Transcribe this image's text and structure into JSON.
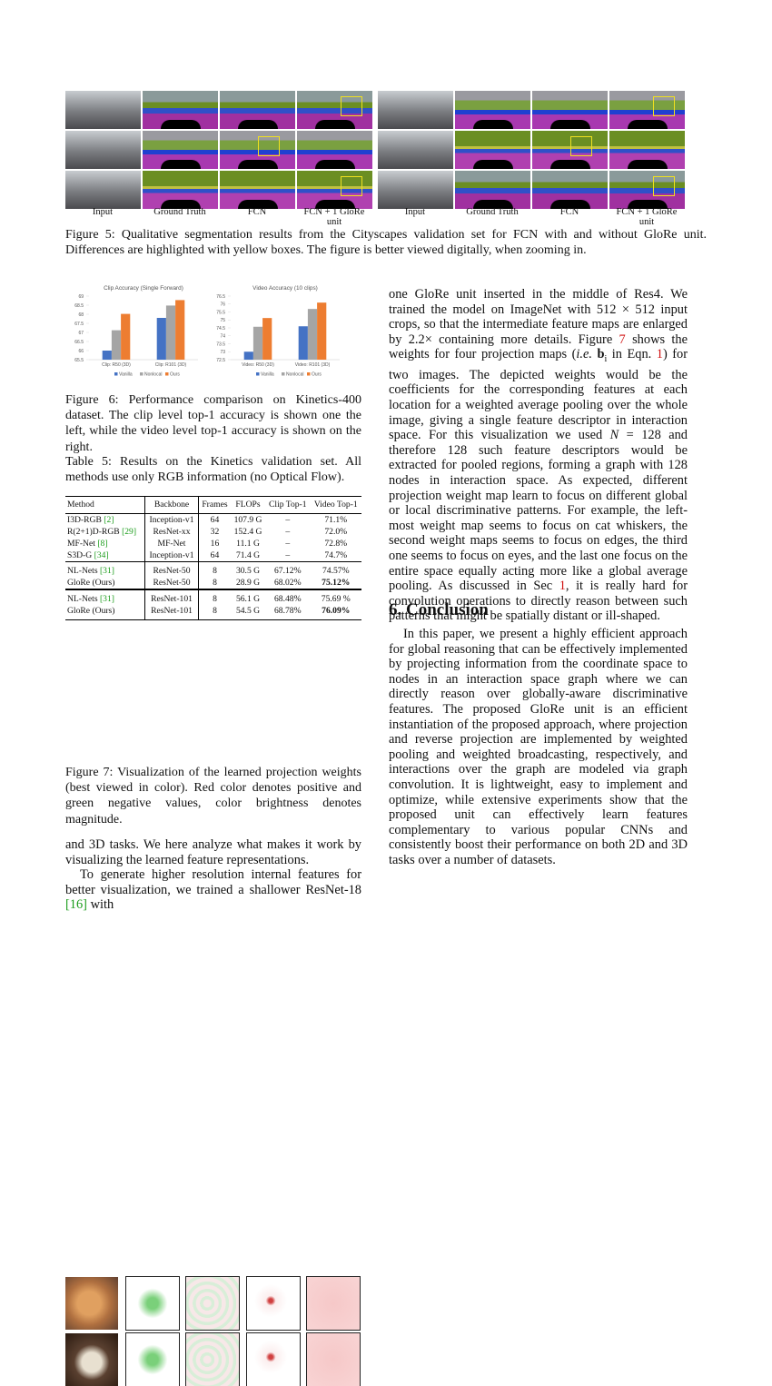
{
  "figure5": {
    "column_labels": [
      "Input",
      "Ground Truth",
      "FCN",
      "FCN + 1 GloRe unit",
      "Input",
      "Ground Truth",
      "FCN",
      "FCN + 1 GloRe unit"
    ],
    "caption": "Figure 5: Qualitative segmentation results from the Cityscapes validation set for FCN with and without GloRe unit. Differences are highlighted with yellow boxes. The figure is better viewed digitally, when zooming in."
  },
  "chart_data": [
    {
      "type": "bar",
      "title": "Clip Accuracy (Single Forward)",
      "categories": [
        "Clip: R50 (3D)",
        "Clip: R101 (3D)"
      ],
      "series": [
        {
          "name": "Vanilla",
          "color": "#4472c4",
          "values": [
            66.0,
            67.8
          ]
        },
        {
          "name": "Nonlocal",
          "color": "#a5a5a5",
          "values": [
            67.12,
            68.48
          ]
        },
        {
          "name": "Ours",
          "color": "#ed7d31",
          "values": [
            68.02,
            68.78
          ]
        }
      ],
      "ylim": [
        65.5,
        69
      ],
      "yticks": [
        65.5,
        66,
        66.5,
        67,
        67.5,
        68,
        68.5,
        69
      ],
      "legend": "bottom"
    },
    {
      "type": "bar",
      "title": "Video Accuracy (10 clips)",
      "categories": [
        "Video: R50 (3D)",
        "Video: R101 (3D)"
      ],
      "series": [
        {
          "name": "Vanilla",
          "color": "#4472c4",
          "values": [
            73.0,
            74.6
          ]
        },
        {
          "name": "Nonlocal",
          "color": "#a5a5a5",
          "values": [
            74.57,
            75.69
          ]
        },
        {
          "name": "Ours",
          "color": "#ed7d31",
          "values": [
            75.12,
            76.09
          ]
        }
      ],
      "ylim": [
        72.5,
        76.5
      ],
      "yticks": [
        72.5,
        73,
        73.5,
        74,
        74.5,
        75,
        75.5,
        76,
        76.5
      ],
      "legend": "bottom"
    }
  ],
  "figure6": {
    "caption": "Figure 6: Performance comparison on Kinetics-400 dataset. The clip level top-1 accuracy is shown one the left, while the video level top-1 accuracy is shown on the right."
  },
  "table5": {
    "caption": "Table 5: Results on the Kinetics validation set. All methods use only RGB information (no Optical Flow).",
    "header": [
      "Method",
      "Backbone",
      "Frames",
      "FLOPs",
      "Clip Top-1",
      "Video Top-1"
    ],
    "groups": [
      [
        {
          "method": "I3D-RGB",
          "cite": "[2]",
          "cells": [
            "Inception-v1",
            "64",
            "107.9 G",
            "–",
            "71.1%"
          ]
        },
        {
          "method": "R(2+1)D-RGB",
          "cite": "[29]",
          "cells": [
            "ResNet-xx",
            "32",
            "152.4 G",
            "–",
            "72.0%"
          ]
        },
        {
          "method": "MF-Net",
          "cite": "[8]",
          "cells": [
            "MF-Net",
            "16",
            "11.1 G",
            "–",
            "72.8%"
          ]
        },
        {
          "method": "S3D-G",
          "cite": "[34]",
          "cells": [
            "Inception-v1",
            "64",
            "71.4 G",
            "–",
            "74.7%"
          ]
        }
      ],
      [
        {
          "method": "NL-Nets",
          "cite": "[31]",
          "cells": [
            "ResNet-50",
            "8",
            "30.5 G",
            "67.12%",
            "74.57%"
          ]
        },
        {
          "method": "GloRe (Ours)",
          "cells": [
            "ResNet-50",
            "8",
            "28.9 G",
            "68.02%",
            "75.12%"
          ]
        }
      ],
      [
        {
          "method": "NL-Nets",
          "cite": "[31]",
          "cells": [
            "ResNet-101",
            "8",
            "56.1 G",
            "68.48%",
            "75.69 %"
          ]
        },
        {
          "method": "GloRe (Ours)",
          "cells": [
            "ResNet-101",
            "8",
            "54.5 G",
            "68.78%",
            "76.09%"
          ]
        }
      ]
    ]
  },
  "figure7": {
    "caption": "Figure 7: Visualization of the learned projection weights (best viewed in color). Red color denotes positive and green negative values, color brightness denotes magnitude."
  },
  "left_text": [
    [
      "and 3D tasks. We here analyze what makes it work by visualizing the learned feature representations."
    ],
    [
      "To generate higher resolution internal features for better visualization, we trained a shallower ResNet-18 ",
      {
        "text": "[16]",
        "style": "cite"
      },
      " with"
    ]
  ],
  "right_text": [
    [
      "one GloRe unit inserted in the middle of Res4. We trained the model on ImageNet with 512 × 512 input crops, so that the intermediate feature maps are enlarged by 2.2× containing more details. Figure ",
      {
        "text": "7",
        "style": "ref"
      },
      " shows the weights for four projection maps (",
      {
        "text": "i.e.",
        "style": "italic"
      },
      " ",
      {
        "text": "b",
        "style": "bold"
      },
      {
        "text": "i",
        "style": "sub"
      },
      " in Eqn. ",
      {
        "text": "1",
        "style": "ref"
      },
      ") for two images. The depicted weights would be the coefficients for the corresponding features at each location for a weighted average pooling over the whole image, giving a single feature descriptor in interaction space. For this visualization we used ",
      {
        "text": "N",
        "style": "italic"
      },
      " = 128 and therefore 128 such feature descriptors would be extracted for pooled regions, forming a graph with 128 nodes in interaction space. As expected, different projection weight map learn to focus on different global or local discriminative patterns. For example, the left-most weight map seems to focus on cat whiskers, the second weight maps seems to focus on edges, the third one seems to focus on eyes, and the last one focus on the entire space equally acting more like a global average pooling. As discussed in Sec ",
      {
        "text": "1",
        "style": "ref"
      },
      ", it is really hard for convolution operations to directly reason between such patterns that might be spatially distant or ill-shaped."
    ]
  ],
  "conclusion": {
    "heading": "6. Conclusion",
    "paragraphs": [
      [
        "In this paper, we present a highly efficient approach for global reasoning that can be effectively implemented by projecting information from the coordinate space to nodes in an interaction space graph where we can directly reason over globally-aware discriminative features. The proposed GloRe unit is an efficient instantiation of the proposed approach, where projection and reverse projection are implemented by weighted pooling and weighted broadcasting, respectively, and interactions over the graph are modeled via graph convolution. It is lightweight, easy to implement and optimize, while extensive experiments show that the proposed unit can effectively learn features complementary to various popular CNNs and consistently boost their performance on both 2D and 3D tasks over a number of datasets."
      ]
    ]
  }
}
